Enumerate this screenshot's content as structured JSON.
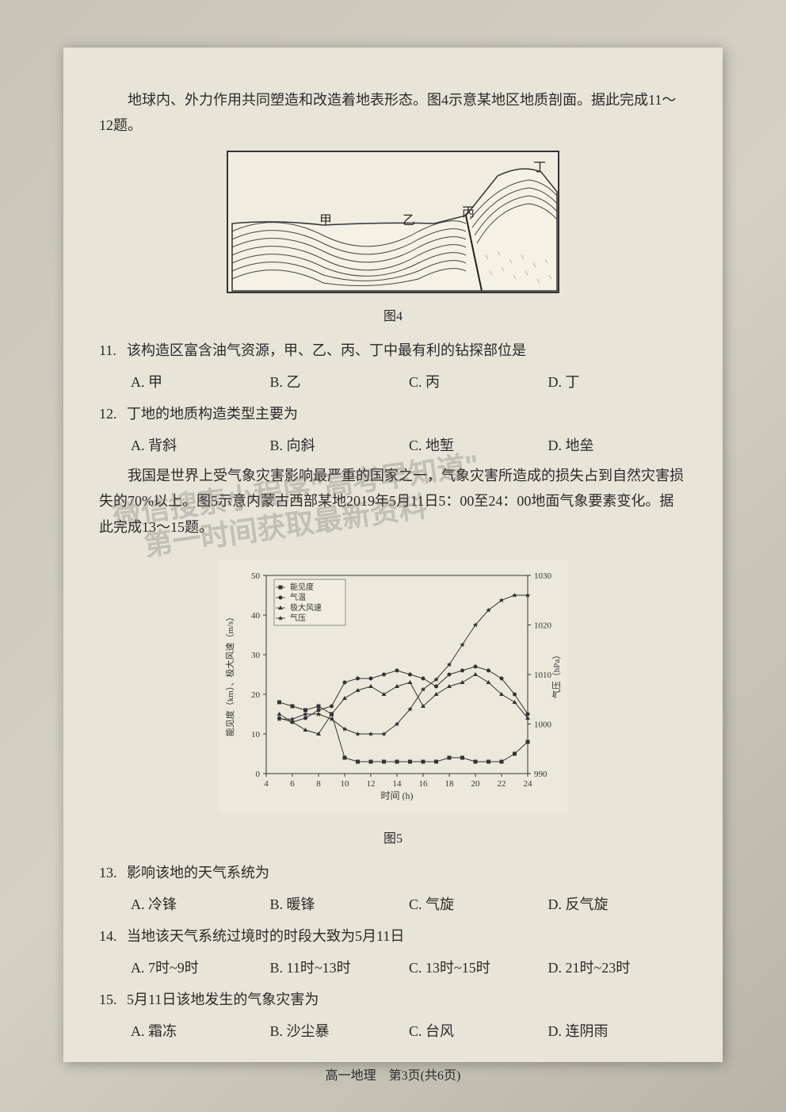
{
  "intro1": {
    "text": "地球内、外力作用共同塑造和改造着地表形态。图4示意某地区地质剖面。据此完成11～12题。"
  },
  "figure4": {
    "caption": "图4",
    "labels": {
      "jia": "甲",
      "yi": "乙",
      "bing": "丙",
      "ding": "丁"
    }
  },
  "q11": {
    "number": "11.",
    "text": "该构造区富含油气资源，甲、乙、丙、丁中最有利的钻探部位是",
    "options": {
      "a": "A. 甲",
      "b": "B. 乙",
      "c": "C. 丙",
      "d": "D. 丁"
    }
  },
  "q12": {
    "number": "12.",
    "text": "丁地的地质构造类型主要为",
    "options": {
      "a": "A. 背斜",
      "b": "B. 向斜",
      "c": "C. 地堑",
      "d": "D. 地垒"
    }
  },
  "intro2": {
    "text": "我国是世界上受气象灾害影响最严重的国家之一，气象灾害所造成的损失占到自然灾害损失的70%以上。图5示意内蒙古西部某地2019年5月11日5：00至24：00地面气象要素变化。据此完成13～15题。"
  },
  "figure5": {
    "caption": "图5",
    "legend": {
      "visibility": "能见度",
      "temperature": "气温",
      "windspeed": "极大风速",
      "pressure": "气压"
    },
    "xaxis": {
      "label": "时间 (h)",
      "ticks": [
        4,
        6,
        8,
        10,
        12,
        14,
        16,
        18,
        20,
        22,
        24
      ]
    },
    "yaxis_left": {
      "label": "能见度（km）、极大风速（m/s）",
      "min": 0,
      "max": 50,
      "ticks": [
        0,
        10,
        20,
        30,
        40,
        50
      ]
    },
    "yaxis_right": {
      "label": "气压（hPa）",
      "min": 990,
      "max": 1030,
      "ticks": [
        990,
        1000,
        1010,
        1020,
        1030
      ]
    },
    "series": {
      "visibility": {
        "color": "#333",
        "marker": "square",
        "data": [
          [
            5,
            18
          ],
          [
            6,
            17
          ],
          [
            7,
            16
          ],
          [
            8,
            17
          ],
          [
            9,
            15
          ],
          [
            10,
            4
          ],
          [
            11,
            3
          ],
          [
            12,
            3
          ],
          [
            13,
            3
          ],
          [
            14,
            3
          ],
          [
            15,
            3
          ],
          [
            16,
            3
          ],
          [
            17,
            3
          ],
          [
            18,
            4
          ],
          [
            19,
            4
          ],
          [
            20,
            3
          ],
          [
            21,
            3
          ],
          [
            22,
            3
          ],
          [
            23,
            5
          ],
          [
            24,
            8
          ]
        ]
      },
      "temperature": {
        "color": "#333",
        "marker": "dot",
        "data": [
          [
            5,
            14
          ],
          [
            6,
            13
          ],
          [
            7,
            14
          ],
          [
            8,
            16
          ],
          [
            9,
            17
          ],
          [
            10,
            23
          ],
          [
            11,
            24
          ],
          [
            12,
            24
          ],
          [
            13,
            25
          ],
          [
            14,
            26
          ],
          [
            15,
            25
          ],
          [
            16,
            24
          ],
          [
            17,
            22
          ],
          [
            18,
            25
          ],
          [
            19,
            26
          ],
          [
            20,
            27
          ],
          [
            21,
            26
          ],
          [
            22,
            24
          ],
          [
            23,
            20
          ],
          [
            24,
            15
          ]
        ]
      },
      "windspeed": {
        "color": "#333",
        "marker": "triangle",
        "data": [
          [
            5,
            15
          ],
          [
            6,
            13
          ],
          [
            7,
            11
          ],
          [
            8,
            10
          ],
          [
            9,
            15
          ],
          [
            10,
            19
          ],
          [
            11,
            21
          ],
          [
            12,
            22
          ],
          [
            13,
            20
          ],
          [
            14,
            22
          ],
          [
            15,
            23
          ],
          [
            16,
            17
          ],
          [
            17,
            20
          ],
          [
            18,
            22
          ],
          [
            19,
            23
          ],
          [
            20,
            25
          ],
          [
            21,
            23
          ],
          [
            22,
            20
          ],
          [
            23,
            18
          ],
          [
            24,
            14
          ]
        ]
      },
      "pressure": {
        "color": "#333",
        "marker": "star",
        "data": [
          [
            5,
            1001
          ],
          [
            6,
            1001
          ],
          [
            7,
            1002
          ],
          [
            8,
            1002
          ],
          [
            9,
            1001
          ],
          [
            10,
            999
          ],
          [
            11,
            998
          ],
          [
            12,
            998
          ],
          [
            13,
            998
          ],
          [
            14,
            1000
          ],
          [
            15,
            1003
          ],
          [
            16,
            1007
          ],
          [
            17,
            1009
          ],
          [
            18,
            1012
          ],
          [
            19,
            1016
          ],
          [
            20,
            1020
          ],
          [
            21,
            1023
          ],
          [
            22,
            1025
          ],
          [
            23,
            1026
          ],
          [
            24,
            1026
          ]
        ]
      }
    }
  },
  "q13": {
    "number": "13.",
    "text": "影响该地的天气系统为",
    "options": {
      "a": "A. 冷锋",
      "b": "B. 暖锋",
      "c": "C. 气旋",
      "d": "D. 反气旋"
    }
  },
  "q14": {
    "number": "14.",
    "text": "当地该天气系统过境时的时段大致为5月11日",
    "options": {
      "a": "A. 7时~9时",
      "b": "B. 11时~13时",
      "c": "C. 13时~15时",
      "d": "D. 21时~23时"
    }
  },
  "q15": {
    "number": "15.",
    "text": "5月11日该地发生的气象灾害为",
    "options": {
      "a": "A. 霜冻",
      "b": "B. 沙尘暴",
      "c": "C. 台风",
      "d": "D. 连阴雨"
    }
  },
  "footer": {
    "text": "高一地理　第3页(共6页)"
  },
  "watermark": {
    "line1": "微信搜索小程序\"高考早知道\"",
    "line2": "第一时间获取最新资料"
  }
}
